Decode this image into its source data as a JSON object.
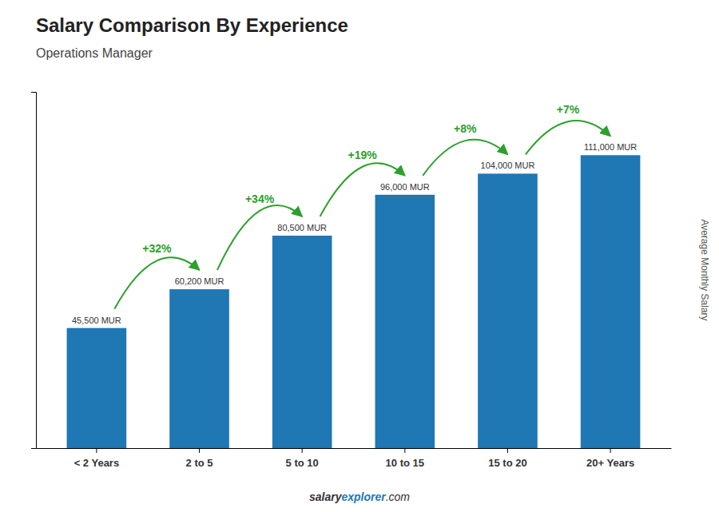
{
  "chart_data": {
    "type": "bar",
    "title": "Salary Comparison By Experience",
    "subtitle": "Operations Manager",
    "y_label": "Average Monthly Salary",
    "categories": [
      "< 2 Years",
      "2 to 5",
      "5 to 10",
      "10 to 15",
      "15 to 20",
      "20+ Years"
    ],
    "values": [
      45500,
      60200,
      80500,
      96000,
      104000,
      111000
    ],
    "value_labels": [
      "45,500 MUR",
      "60,200 MUR",
      "80,500 MUR",
      "96,000 MUR",
      "104,000 MUR",
      "111,000 MUR"
    ],
    "data_labels": true,
    "ylim": [
      0,
      135000
    ],
    "tick_labels": "x",
    "grid": false,
    "annotations": [
      {
        "text": "+32%",
        "from": 0,
        "to": 1
      },
      {
        "text": "+34%",
        "from": 1,
        "to": 2
      },
      {
        "text": "+19%",
        "from": 2,
        "to": 3
      },
      {
        "text": "+8%",
        "from": 3,
        "to": 4
      },
      {
        "text": "+7%",
        "from": 4,
        "to": 5
      }
    ],
    "footer": [
      "salary",
      "explorer",
      ".com"
    ]
  }
}
